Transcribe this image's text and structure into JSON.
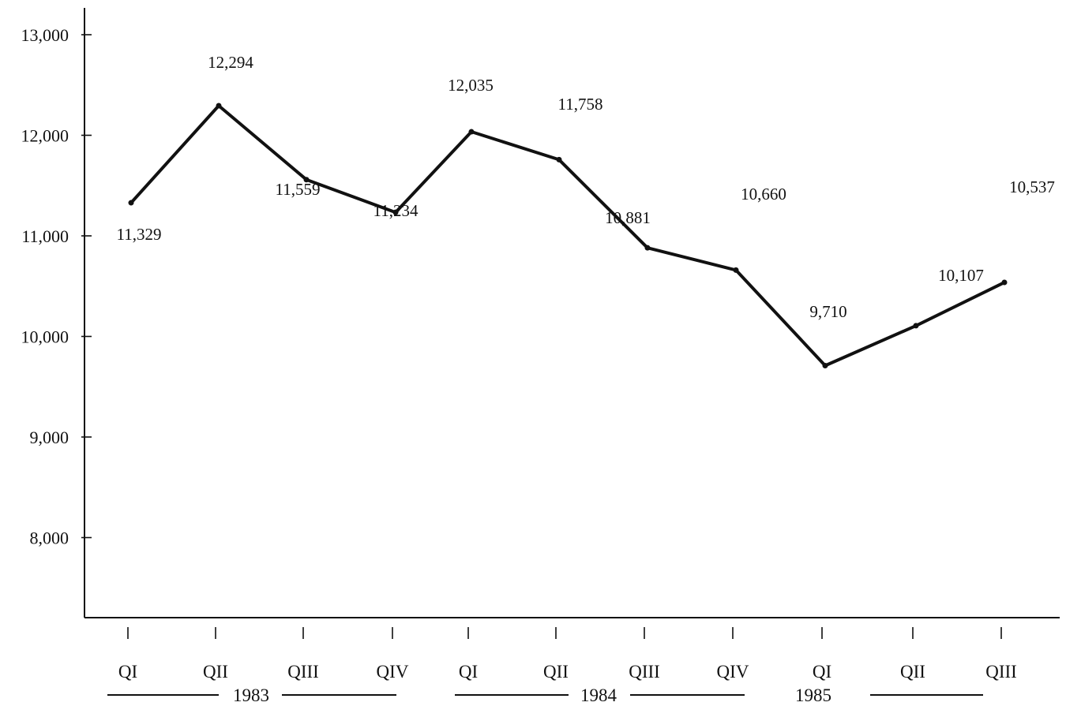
{
  "chart_data": {
    "type": "line",
    "title": "",
    "xlabel": "",
    "ylabel": "",
    "categories": [
      "QI",
      "QII",
      "QIII",
      "QIV",
      "QI",
      "QII",
      "QIII",
      "QIV",
      "QI",
      "QII",
      "QIII"
    ],
    "years": [
      "1983",
      "1984",
      "1985"
    ],
    "series": [
      {
        "values": [
          11329,
          12294,
          11559,
          11234,
          12035,
          11758,
          10881,
          10660,
          9710,
          10107,
          10537
        ]
      }
    ],
    "data_labels": [
      "11,329",
      "12,294",
      "11,559",
      "11,234",
      "12,035",
      "11,758",
      "10,881",
      "10,660",
      "9,710",
      "10,107",
      "10,537"
    ],
    "y_ticks": [
      {
        "value": 8000,
        "label": "8,000"
      },
      {
        "value": 9000,
        "label": "9,000"
      },
      {
        "value": 10000,
        "label": "10,000"
      },
      {
        "value": 11000,
        "label": "11,000"
      },
      {
        "value": 12000,
        "label": "12,000"
      },
      {
        "value": 13000,
        "label": "13,000"
      }
    ],
    "ylim": [
      7200,
      13200
    ],
    "grid": false,
    "color": "#111111"
  }
}
